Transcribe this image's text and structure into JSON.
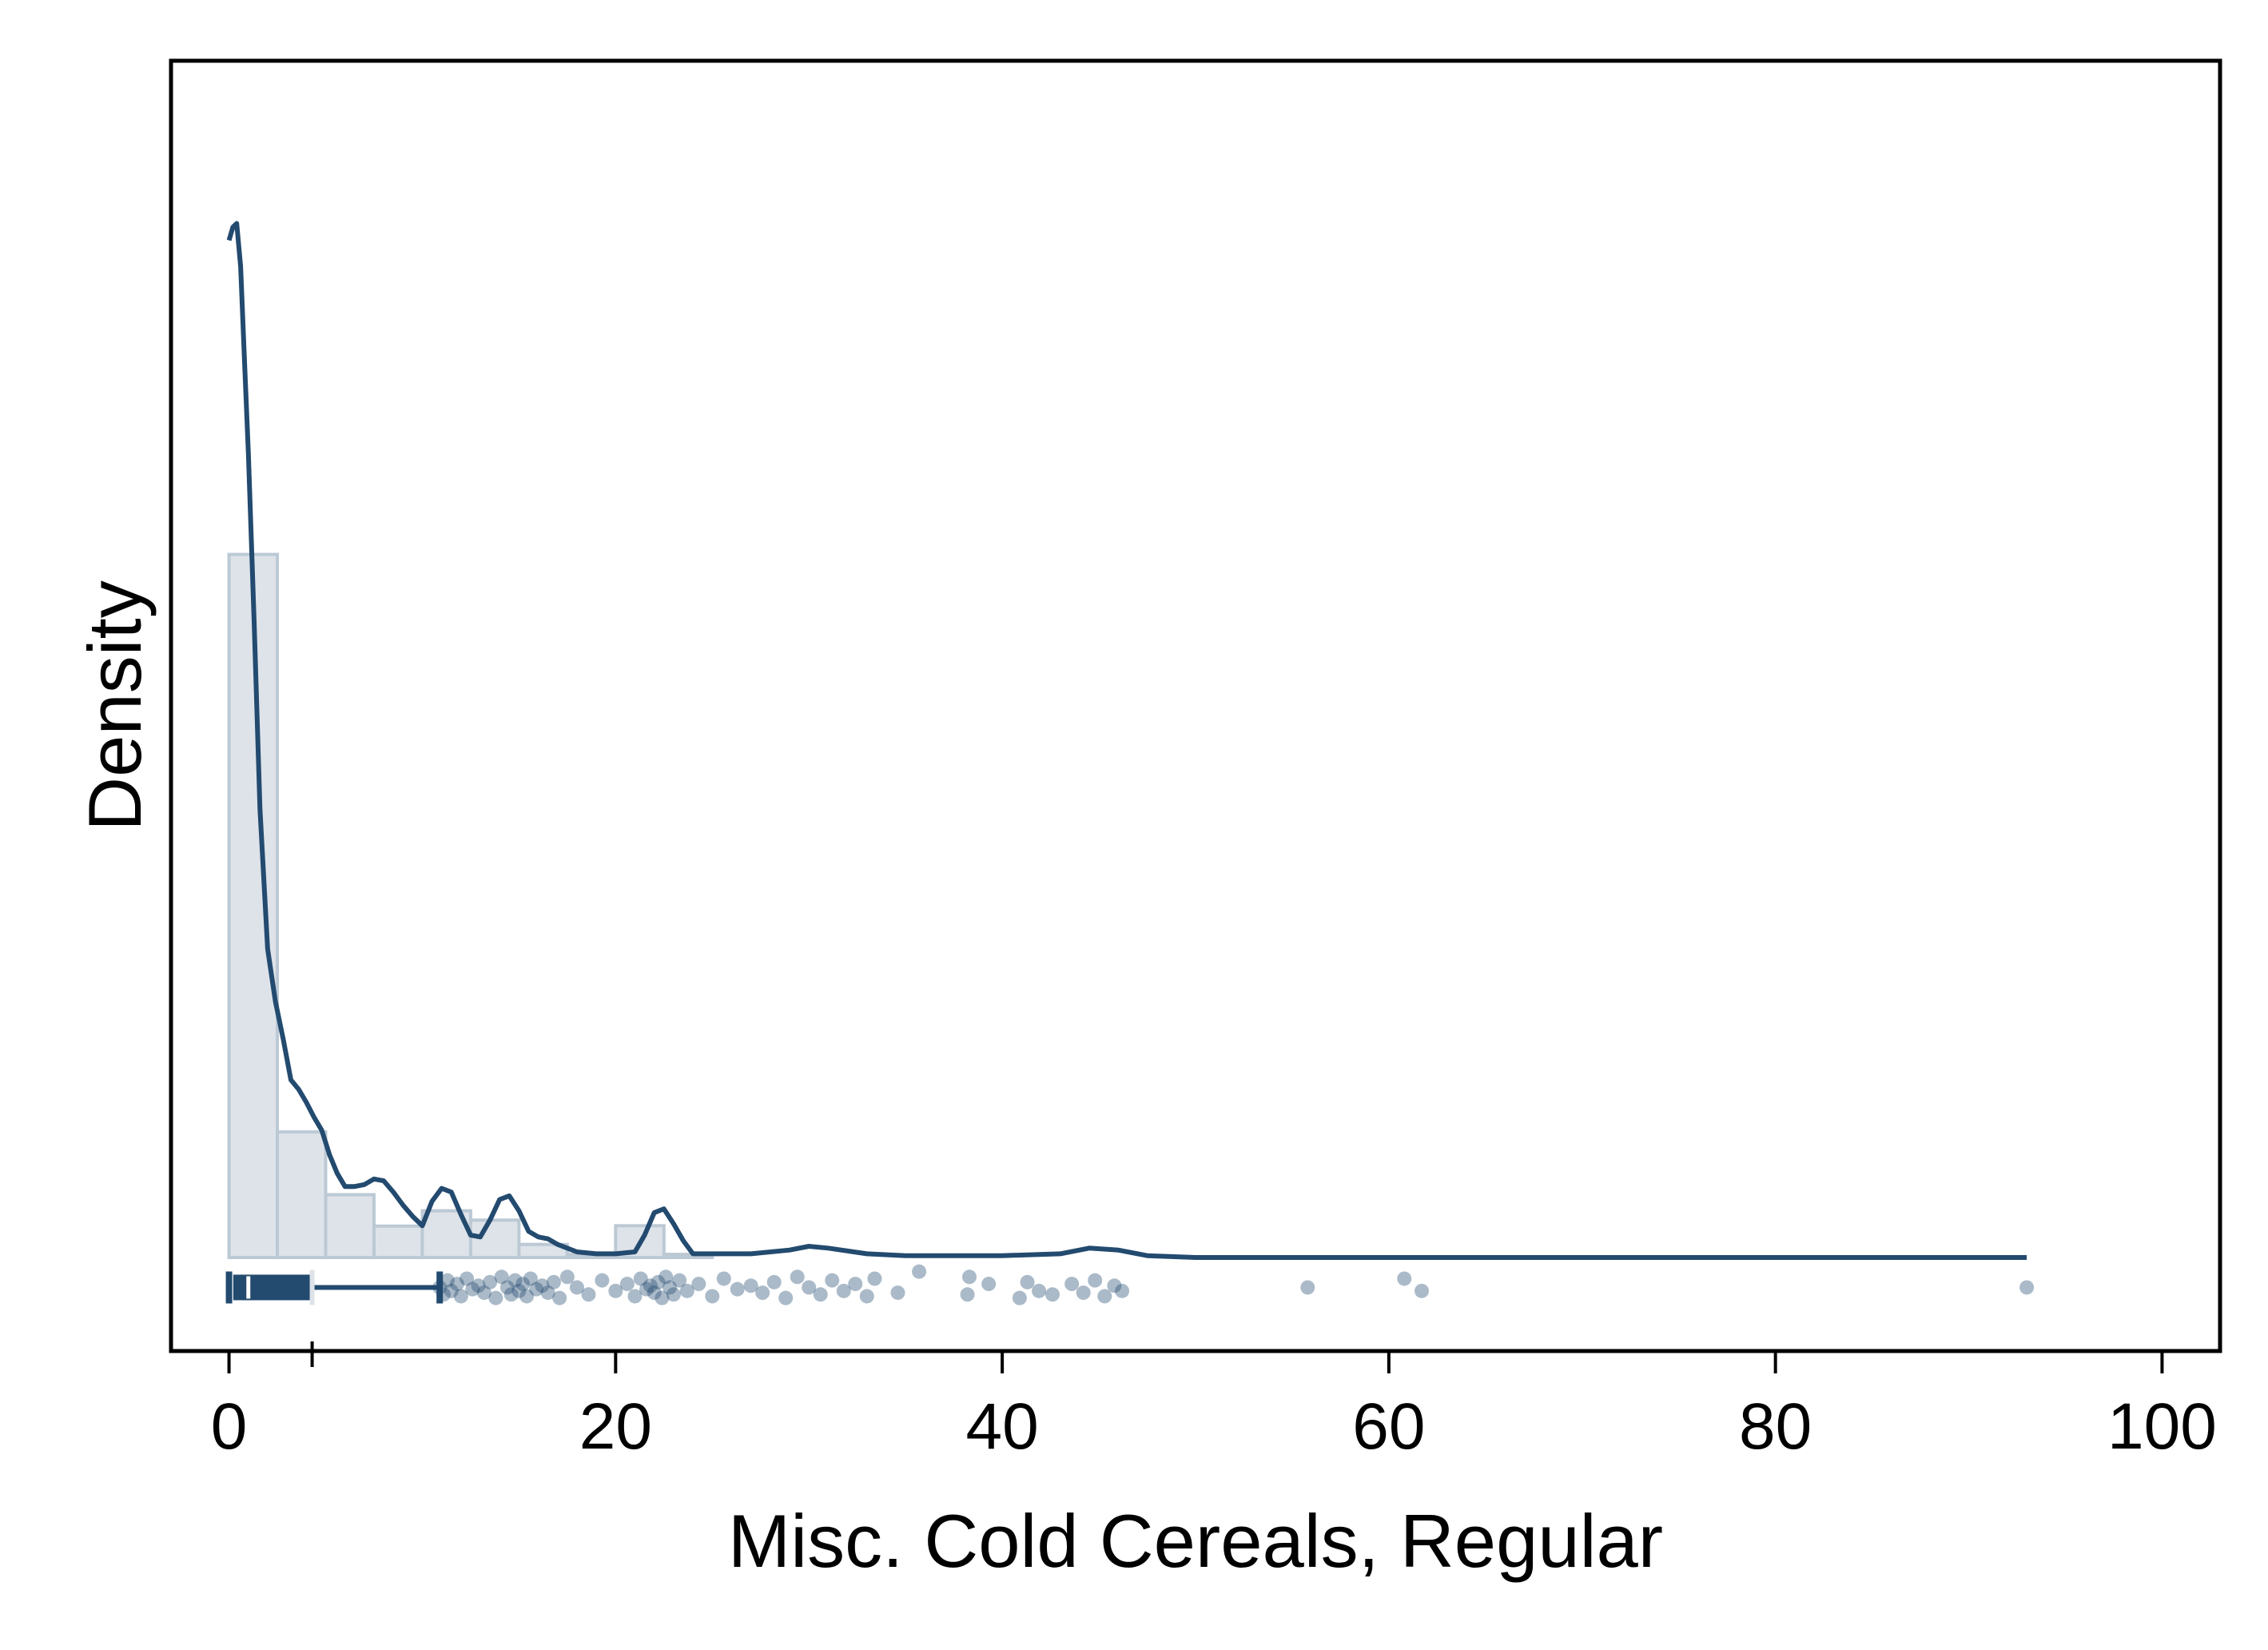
{
  "chart_data": {
    "type": "histogram",
    "xlabel": "Misc. Cold Cereals, Regular",
    "ylabel": "Density",
    "xlim": [
      -3,
      103
    ],
    "ylim": [
      -0.05,
      0.64
    ],
    "x_ticks": [
      0,
      20,
      40,
      60,
      80,
      100
    ],
    "x_tick_labels": [
      "0",
      "20",
      "40",
      "60",
      "80",
      "100"
    ],
    "y_ticks_shown": false,
    "grid": false,
    "legend": "none",
    "colors": {
      "line": "#234a6f",
      "bar_fill": "#dde3e9",
      "bar_edge": "#bcc9d5",
      "point": "#234a6f",
      "axis": "#000000"
    },
    "histogram": {
      "bin_edges": [
        0,
        2.5,
        5,
        7.5,
        10,
        12.5,
        15,
        17.5,
        20,
        22.5,
        25
      ],
      "density": [
        0.376,
        0.0672,
        0.0336,
        0.0168,
        0.025,
        0.02,
        0.007,
        0.0017,
        0.017,
        0.0017
      ]
    },
    "kde": {
      "x": [
        0,
        0.2,
        0.4,
        0.6,
        0.8,
        1.0,
        1.3,
        1.6,
        2.0,
        2.4,
        2.8,
        3.2,
        3.6,
        4.0,
        4.4,
        4.8,
        5.2,
        5.6,
        6.0,
        6.5,
        7.0,
        7.5,
        8.0,
        8.5,
        9.0,
        9.5,
        10.0,
        10.5,
        11.0,
        11.5,
        12.0,
        12.5,
        13.0,
        13.5,
        14.0,
        14.5,
        15.0,
        15.5,
        16.0,
        16.5,
        17.0,
        18.0,
        19.0,
        20.0,
        21.0,
        21.5,
        22.0,
        22.5,
        23.0,
        23.5,
        24.0,
        25.0,
        27.0,
        29.0,
        30.0,
        31.0,
        33.0,
        35.0,
        40.0,
        43.0,
        44.5,
        46.0,
        47.5,
        50.0,
        60.0,
        70.0,
        80.0,
        93.0
      ],
      "density": [
        0.544,
        0.551,
        0.553,
        0.53,
        0.48,
        0.43,
        0.34,
        0.24,
        0.165,
        0.137,
        0.117,
        0.095,
        0.09,
        0.083,
        0.075,
        0.068,
        0.055,
        0.045,
        0.038,
        0.038,
        0.039,
        0.042,
        0.041,
        0.035,
        0.028,
        0.022,
        0.017,
        0.03,
        0.037,
        0.035,
        0.023,
        0.012,
        0.011,
        0.02,
        0.031,
        0.033,
        0.025,
        0.014,
        0.011,
        0.01,
        0.007,
        0.003,
        0.002,
        0.002,
        0.003,
        0.012,
        0.024,
        0.026,
        0.018,
        0.009,
        0.002,
        0.002,
        0.002,
        0.004,
        0.006,
        0.005,
        0.002,
        0.001,
        0.001,
        0.002,
        0.005,
        0.004,
        0.001,
        0.0,
        0.0,
        0.0,
        0.0,
        0.0
      ]
    },
    "boxplot": {
      "whisker_low": 0,
      "q1": 0.3,
      "median": 1.0,
      "q3": 4.2,
      "whisker_high": 10.9,
      "mean": 4.3
    },
    "strip_points": {
      "y_level": -0.016,
      "x": [
        10.9,
        11.1,
        11.3,
        11.5,
        11.8,
        12.0,
        12.3,
        12.6,
        12.9,
        13.2,
        13.5,
        13.8,
        14.1,
        14.4,
        14.6,
        14.8,
        15.0,
        15.2,
        15.4,
        15.6,
        15.9,
        16.2,
        16.5,
        16.8,
        17.1,
        17.5,
        18.0,
        18.6,
        19.3,
        20.0,
        20.6,
        21.0,
        21.3,
        21.6,
        21.8,
        22.0,
        22.2,
        22.4,
        22.6,
        22.8,
        23.0,
        23.3,
        23.7,
        24.3,
        25.0,
        25.6,
        26.3,
        27.0,
        27.6,
        28.2,
        28.8,
        29.4,
        30.0,
        30.6,
        31.2,
        31.8,
        32.4,
        33.0,
        33.4,
        34.6,
        35.7,
        38.2,
        38.3,
        39.3,
        40.9,
        41.3,
        41.9,
        42.6,
        43.6,
        44.2,
        44.8,
        45.3,
        45.8,
        46.2,
        55.8,
        60.8,
        61.7,
        93.0
      ],
      "jitter": [
        0.0,
        0.4,
        -0.4,
        0.2,
        -0.2,
        0.5,
        -0.5,
        0.1,
        -0.1,
        0.3,
        -0.3,
        0.6,
        -0.6,
        0.0,
        0.4,
        -0.4,
        0.2,
        -0.2,
        0.5,
        -0.5,
        0.1,
        -0.1,
        0.3,
        -0.3,
        0.6,
        -0.6,
        0.0,
        0.4,
        -0.4,
        0.2,
        -0.2,
        0.5,
        -0.5,
        0.1,
        -0.1,
        0.3,
        -0.3,
        0.6,
        -0.6,
        0.0,
        0.4,
        -0.4,
        0.2,
        -0.2,
        0.5,
        -0.5,
        0.1,
        -0.1,
        0.3,
        -0.3,
        0.6,
        -0.6,
        0.0,
        0.4,
        -0.4,
        0.2,
        -0.2,
        0.5,
        -0.5,
        0.3,
        -0.9,
        0.4,
        -0.6,
        -0.2,
        0.6,
        -0.3,
        0.2,
        0.4,
        -0.2,
        0.3,
        -0.4,
        0.5,
        -0.1,
        0.2,
        0.0,
        -0.5,
        0.2,
        0.0
      ]
    }
  }
}
